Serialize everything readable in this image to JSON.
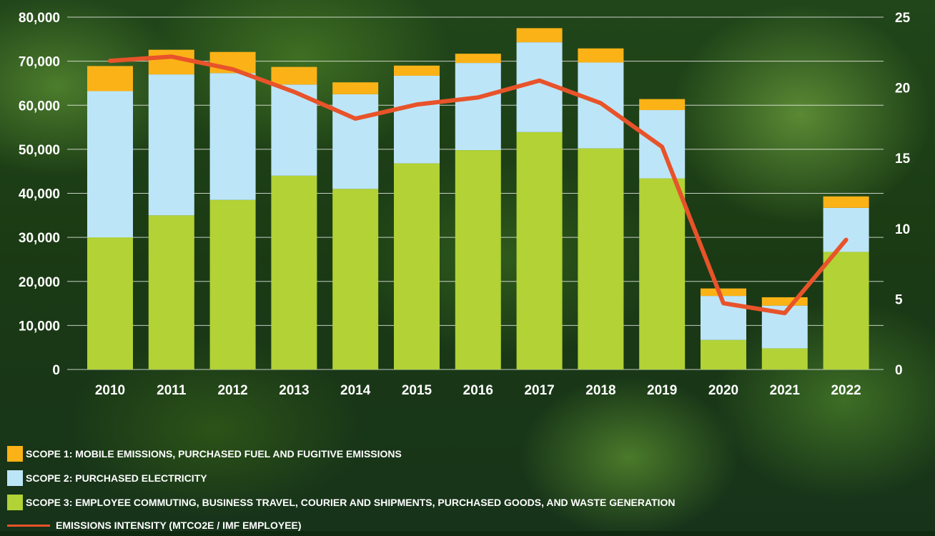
{
  "chart_data": {
    "type": "bar",
    "stacked": true,
    "categories": [
      "2010",
      "2011",
      "2012",
      "2013",
      "2014",
      "2015",
      "2016",
      "2017",
      "2018",
      "2019",
      "2020",
      "2021",
      "2022"
    ],
    "series": [
      {
        "name": "SCOPE 3: EMPLOYEE COMMUTING, BUSINESS TRAVEL, COURIER AND SHIPMENTS, PURCHASED GOODS, AND WASTE GENERATION",
        "color": "#b2d235",
        "values": [
          30000,
          35000,
          38500,
          44000,
          41000,
          46800,
          49800,
          53900,
          50200,
          43400,
          6700,
          4800,
          26700
        ]
      },
      {
        "name": "SCOPE 2: PURCHASED ELECTRICITY",
        "color": "#bde5f8",
        "values": [
          33200,
          32000,
          28800,
          20700,
          21500,
          19900,
          19800,
          20400,
          19500,
          15500,
          10000,
          9700,
          10000
        ]
      },
      {
        "name": "SCOPE 1: MOBILE EMISSIONS, PURCHASED FUEL AND FUGITIVE EMISSIONS",
        "color": "#fbb217",
        "values": [
          5700,
          5600,
          4800,
          4000,
          2700,
          2300,
          2100,
          3200,
          3200,
          2500,
          1700,
          1900,
          2600
        ]
      }
    ],
    "line_series": {
      "name": "EMISSIONS INTENSITY (MTCO2E / IMF EMPLOYEE)",
      "color": "#e8532a",
      "axis": "right",
      "values": [
        21.9,
        22.2,
        21.3,
        19.7,
        17.8,
        18.8,
        19.3,
        20.5,
        18.9,
        15.8,
        4.7,
        4.0,
        9.2
      ]
    },
    "y_left": {
      "ylim": [
        0,
        80000
      ],
      "ticks": [
        "80,000",
        "70,000",
        "60,000",
        "50,000",
        "40,000",
        "30,000",
        "20,000",
        "10,000",
        "0"
      ]
    },
    "y_right": {
      "ylim": [
        0,
        25
      ],
      "ticks": [
        "25",
        "20",
        "15",
        "10",
        "5",
        "0"
      ]
    },
    "grid": true,
    "legend_position": "bottom-left"
  }
}
